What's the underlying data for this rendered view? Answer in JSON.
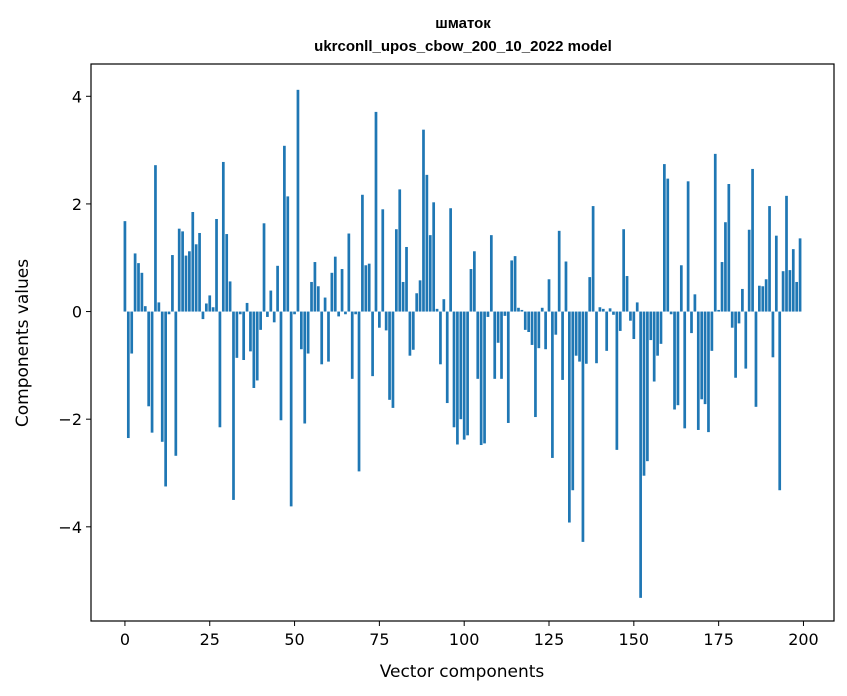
{
  "chart_data": {
    "type": "bar",
    "title": "шматок",
    "subtitle": "ukrconll_upos_cbow_200_10_2022 model",
    "xlabel": "Vector components",
    "ylabel": "Components values",
    "xlim": [
      -10,
      209
    ],
    "ylim": [
      -5.75,
      4.6
    ],
    "xticks": [
      0,
      25,
      50,
      75,
      100,
      125,
      150,
      175,
      200
    ],
    "yticks": [
      -4,
      -2,
      0,
      2,
      4
    ],
    "grid": false,
    "bar_color": "#1f77b4",
    "values": [
      1.68,
      -2.35,
      -0.78,
      1.08,
      0.9,
      0.72,
      0.1,
      -1.76,
      -2.25,
      2.72,
      0.17,
      -2.42,
      -3.25,
      -0.05,
      1.05,
      -2.68,
      1.54,
      1.49,
      1.04,
      1.12,
      1.85,
      1.25,
      1.46,
      -0.14,
      0.15,
      0.3,
      0.08,
      1.72,
      -2.15,
      2.78,
      1.44,
      0.56,
      -3.5,
      -0.86,
      -0.05,
      -0.9,
      0.16,
      -0.74,
      -1.42,
      -1.28,
      -0.34,
      1.64,
      -0.1,
      0.39,
      -0.2,
      0.85,
      -2.02,
      3.08,
      2.14,
      -3.62,
      -0.05,
      4.12,
      -0.7,
      -2.08,
      -0.78,
      0.55,
      0.92,
      0.47,
      -0.98,
      0.26,
      -0.93,
      0.72,
      1.02,
      -0.09,
      0.79,
      -0.05,
      1.45,
      -1.25,
      -0.05,
      -2.97,
      2.17,
      0.86,
      0.89,
      -1.2,
      3.71,
      -0.3,
      1.9,
      -0.35,
      -1.64,
      -1.79,
      1.53,
      2.27,
      0.55,
      1.2,
      -0.82,
      -0.71,
      0.34,
      0.58,
      3.38,
      2.54,
      1.42,
      2.03,
      0.05,
      -0.98,
      0.23,
      -1.7,
      1.92,
      -2.15,
      -2.47,
      -2.0,
      -2.38,
      -2.3,
      0.79,
      1.12,
      -1.25,
      -2.48,
      -2.45,
      -0.1,
      1.42,
      -1.25,
      -0.58,
      -1.25,
      -0.08,
      -2.07,
      0.95,
      1.03,
      0.07,
      0.03,
      -0.34,
      -0.38,
      -0.62,
      -1.96,
      -0.68,
      0.07,
      -0.7,
      0.6,
      -2.72,
      -0.43,
      1.5,
      -1.27,
      0.93,
      -3.92,
      -3.32,
      -0.82,
      -0.93,
      -4.28,
      -0.97,
      0.64,
      1.96,
      -0.96,
      0.08,
      0.05,
      -0.73,
      0.06,
      -0.06,
      -2.57,
      -0.36,
      1.53,
      0.66,
      -0.17,
      -0.51,
      0.17,
      -5.32,
      -3.05,
      -2.78,
      -0.53,
      -1.3,
      -0.82,
      -0.6,
      2.74,
      2.47,
      -0.05,
      -1.82,
      -1.74,
      0.86,
      -2.17,
      2.42,
      -0.4,
      0.32,
      -2.2,
      -1.63,
      -1.72,
      -2.24,
      -0.73,
      2.93,
      0.03,
      0.92,
      1.66,
      2.37,
      -0.3,
      -1.23,
      -0.22,
      0.42,
      -1.06,
      1.52,
      2.65,
      -1.77,
      0.48,
      0.47,
      0.6,
      1.96,
      -0.85,
      1.41,
      -3.32,
      0.75,
      2.15,
      0.77,
      1.16,
      0.55,
      1.36
    ]
  }
}
